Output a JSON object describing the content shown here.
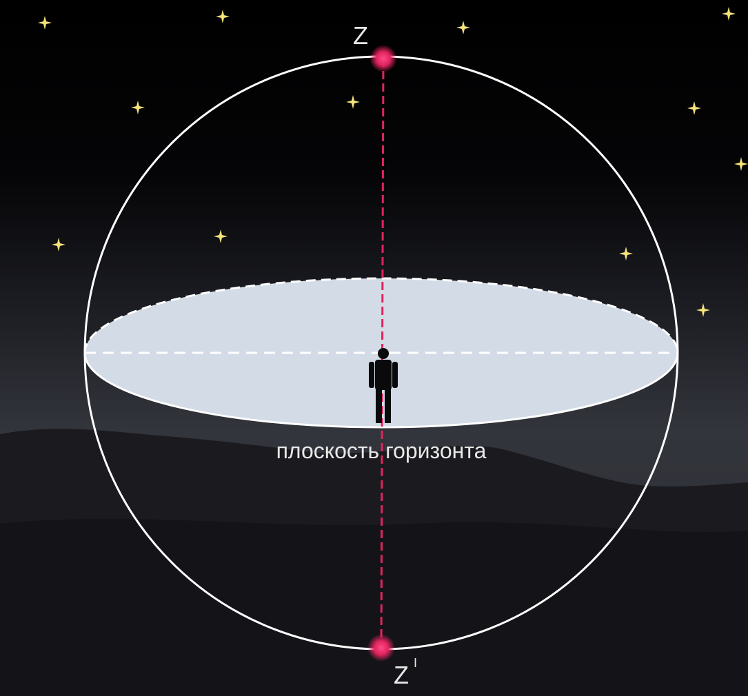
{
  "labels": {
    "zenith": "Z",
    "nadir": "Z",
    "nadir_mark": "I",
    "horizon": "плоскость горизонта"
  }
}
